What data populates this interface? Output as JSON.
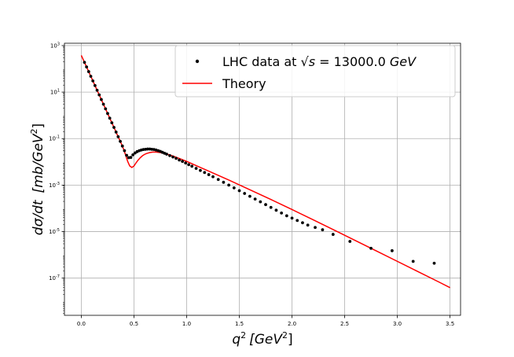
{
  "chart_data": {
    "type": "scatter",
    "xlabel_main": "q",
    "xlabel_sup": "2",
    "xlabel_unit": "[GeV",
    "xlabel_unit_sup": "2",
    "xlabel_close": "]",
    "ylabel_main": "dσ/dt",
    "ylabel_unit": "[mb/GeV",
    "ylabel_unit_sup": "2",
    "ylabel_close": "]",
    "xlim": [
      -0.16,
      3.6
    ],
    "ylim_log10": [
      -8.6,
      3.1
    ],
    "yscale": "log",
    "grid": true,
    "legend_position": "top-right",
    "x_ticks": [
      "0.0",
      "0.5",
      "1.0",
      "1.5",
      "2.0",
      "2.5",
      "3.0",
      "3.5"
    ],
    "y_tick_exponents": [
      "3",
      "1",
      "-1",
      "-3",
      "-5",
      "-7"
    ],
    "y_tick_base": "10",
    "series": [
      {
        "name_prefix": "LHC data at ",
        "name_sqrt_s": "√s",
        "name_mid": " = 13000.0 ",
        "name_unit": "GeV",
        "kind": "scatter",
        "color": "#000000",
        "x": [
          0.03,
          0.05,
          0.07,
          0.09,
          0.11,
          0.13,
          0.15,
          0.17,
          0.19,
          0.21,
          0.23,
          0.25,
          0.27,
          0.29,
          0.31,
          0.33,
          0.35,
          0.37,
          0.39,
          0.41,
          0.43,
          0.45,
          0.47,
          0.49,
          0.51,
          0.53,
          0.55,
          0.57,
          0.59,
          0.61,
          0.63,
          0.65,
          0.67,
          0.69,
          0.71,
          0.73,
          0.75,
          0.77,
          0.79,
          0.81,
          0.84,
          0.87,
          0.9,
          0.93,
          0.96,
          0.99,
          1.02,
          1.05,
          1.09,
          1.13,
          1.17,
          1.21,
          1.25,
          1.3,
          1.35,
          1.4,
          1.45,
          1.5,
          1.55,
          1.6,
          1.65,
          1.7,
          1.75,
          1.8,
          1.85,
          1.9,
          1.95,
          2.0,
          2.05,
          2.1,
          2.15,
          2.22,
          2.29,
          2.39,
          2.55,
          2.75,
          2.95,
          3.15,
          3.35
        ],
        "y": [
          190.5,
          120.2,
          75.9,
          47.9,
          30.2,
          19.1,
          12.0,
          7.59,
          4.79,
          3.02,
          1.91,
          1.2,
          0.759,
          0.479,
          0.302,
          0.191,
          0.12,
          0.0759,
          0.0479,
          0.0302,
          0.0191,
          0.0151,
          0.0155,
          0.02,
          0.024,
          0.0275,
          0.0302,
          0.0324,
          0.0339,
          0.0347,
          0.0355,
          0.0355,
          0.0347,
          0.0339,
          0.0324,
          0.0302,
          0.0282,
          0.0257,
          0.0234,
          0.0214,
          0.0186,
          0.0162,
          0.0141,
          0.012,
          0.0105,
          0.00891,
          0.00759,
          0.00646,
          0.00525,
          0.00427,
          0.00347,
          0.00282,
          0.00229,
          0.00174,
          0.00132,
          0.001,
          0.000759,
          0.000575,
          0.000437,
          0.000331,
          0.000251,
          0.000191,
          0.000145,
          0.00011,
          8.32e-05,
          6.31e-05,
          4.79e-05,
          3.8e-05,
          3.02e-05,
          2.4e-05,
          1.91e-05,
          1.51e-05,
          1.2e-05,
          7.59e-06,
          3.8e-06,
          1.91e-06,
          1.51e-06,
          5.25e-07,
          4.37e-07
        ]
      },
      {
        "name": "Theory",
        "kind": "line",
        "color": "#ff0000",
        "x": [
          0.0,
          0.02,
          0.04,
          0.06,
          0.08,
          0.1,
          0.12,
          0.14,
          0.16,
          0.18,
          0.2,
          0.22,
          0.24,
          0.26,
          0.28,
          0.3,
          0.32,
          0.34,
          0.36,
          0.38,
          0.4,
          0.42,
          0.44,
          0.46,
          0.48,
          0.5,
          0.52,
          0.54,
          0.56,
          0.58,
          0.6,
          0.62,
          0.65,
          0.68,
          0.71,
          0.75,
          0.8,
          0.85,
          0.9,
          1.0,
          1.1,
          1.2,
          1.4,
          1.6,
          1.8,
          2.0,
          2.2,
          2.4,
          2.6,
          2.8,
          3.0,
          3.2,
          3.4,
          3.5
        ],
        "y": [
          380,
          240,
          150,
          95.5,
          60.3,
          38.0,
          24.0,
          15.1,
          9.55,
          6.03,
          3.8,
          2.4,
          1.51,
          0.955,
          0.603,
          0.38,
          0.24,
          0.151,
          0.0955,
          0.0603,
          0.0363,
          0.02,
          0.0105,
          0.00661,
          0.00575,
          0.00661,
          0.00912,
          0.012,
          0.0151,
          0.0182,
          0.0209,
          0.0229,
          0.0251,
          0.0263,
          0.0263,
          0.0251,
          0.0224,
          0.0191,
          0.0158,
          0.0105,
          0.00661,
          0.00417,
          0.00166,
          0.000631,
          0.00024,
          8.91e-05,
          3.24e-05,
          1.17e-05,
          4.17e-06,
          1.48e-06,
          5.25e-07,
          1.86e-07,
          6.61e-08,
          3.89e-08
        ]
      }
    ]
  }
}
